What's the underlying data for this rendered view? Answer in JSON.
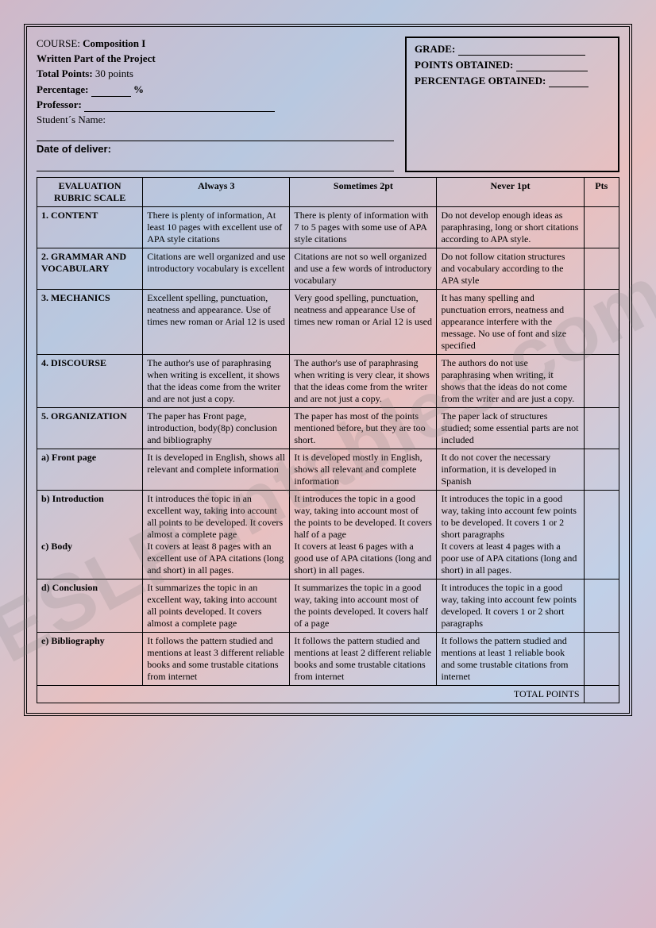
{
  "watermark": "ESLPrintables.com",
  "header": {
    "course_label": "COURSE:",
    "course_value": "Composition I",
    "subtitle": "Written Part of the Project",
    "total_points_label": "Total Points:",
    "total_points_value": "30 points",
    "percentage_label": "Percentage:",
    "percentage_suffix": "%",
    "professor_label": "Professor:",
    "student_label": "Student´s Name:",
    "date_label": "Date of deliver:"
  },
  "grade_box": {
    "grade_label": "GRADE:",
    "points_label": "POINTS OBTAINED:",
    "percentage_label": "PERCENTAGE OBTAINED:"
  },
  "table_headers": {
    "scale": "EVALUATION RUBRIC SCALE",
    "always": "Always 3",
    "sometimes": "Sometimes 2pt",
    "never": "Never  1pt",
    "pts": "Pts"
  },
  "rows": [
    {
      "label": "1. CONTENT",
      "always": "There is plenty of information, At least  10 pages with excellent use of APA style citations",
      "sometimes": "There is plenty of information with 7 to 5 pages with some use of APA style citations",
      "never": "Do not develop enough ideas as paraphrasing, long or short citations according to APA style."
    },
    {
      "label": "2. GRAMMAR AND VOCABULARY",
      "always": "Citations are well organized and use introductory vocabulary is excellent",
      "sometimes": "Citations are not so well organized and use a few words of  introductory vocabulary",
      "never": "Do not follow citation structures  and vocabulary according to the APA style"
    },
    {
      "label": "3. MECHANICS",
      "always": "Excellent spelling, punctuation, neatness and appearance. Use of times new roman or Arial 12 is used",
      "sometimes": "Very good spelling, punctuation, neatness and appearance Use of times new roman or Arial 12 is used",
      "never": "It has many spelling and punctuation errors, neatness and appearance interfere with the message. No use of font and size specified"
    },
    {
      "label": "4. DISCOURSE",
      "always": "The author's use of paraphrasing when writing is excellent, it shows that the ideas come from the writer and are not just a copy.",
      "sometimes": "The author's use of paraphrasing when writing is very clear, it shows that the ideas come from the writer and are not just a copy.",
      "never": "The authors do not use paraphrasing when writing, it shows that the ideas do not come from the writer and are just a copy."
    },
    {
      "label": "5. ORGANIZATION",
      "always": "The paper has Front page, introduction, body(8p) conclusion and bibliography",
      "sometimes": "The paper has most of the points mentioned before, but they are too short.",
      "never": "The paper lack of structures studied; some essential parts are not included"
    },
    {
      "label": "a) Front page",
      "always": "It is developed in English, shows all relevant and complete information",
      "sometimes": "It is developed mostly in English, shows all relevant and complete information",
      "never": "It do not cover the necessary information, it is developed in Spanish"
    },
    {
      "label": "b) Introduction\n\n\n\nc) Body",
      "always": "It introduces the topic in an excellent way, taking into account all points to be developed. It covers almost a complete page\nIt covers at least 8 pages with an excellent use of APA citations (long and short) in all pages.",
      "sometimes": "It introduces the topic in a good way, taking into account most of the points to be developed. It covers half of a page\nIt covers at least 6 pages with a good use of APA citations (long and short) in all pages.",
      "never": "It introduces the topic in a good way, taking into account few points to be developed. It covers 1 or 2 short paragraphs\nIt covers at least 4 pages with a poor use of APA citations (long and short) in all pages."
    },
    {
      "label": "d) Conclusion",
      "always": "It summarizes the topic in an excellent way, taking into account all points developed. It covers almost a complete page",
      "sometimes": "It summarizes the topic in a good way, taking into account most of the points developed. It covers half of a page",
      "never": "It introduces the topic in a good way, taking into account few points developed. It covers 1 or 2 short paragraphs"
    },
    {
      "label": "e) Bibliography",
      "always": "It follows the pattern studied and mentions at least 3 different reliable books and some trustable citations from internet",
      "sometimes": "It follows the pattern studied and mentions at least 2 different reliable books and some trustable citations from internet",
      "never": "It follows the pattern studied and mentions at least 1 reliable book and some trustable citations from internet"
    }
  ],
  "total_label": "TOTAL POINTS"
}
